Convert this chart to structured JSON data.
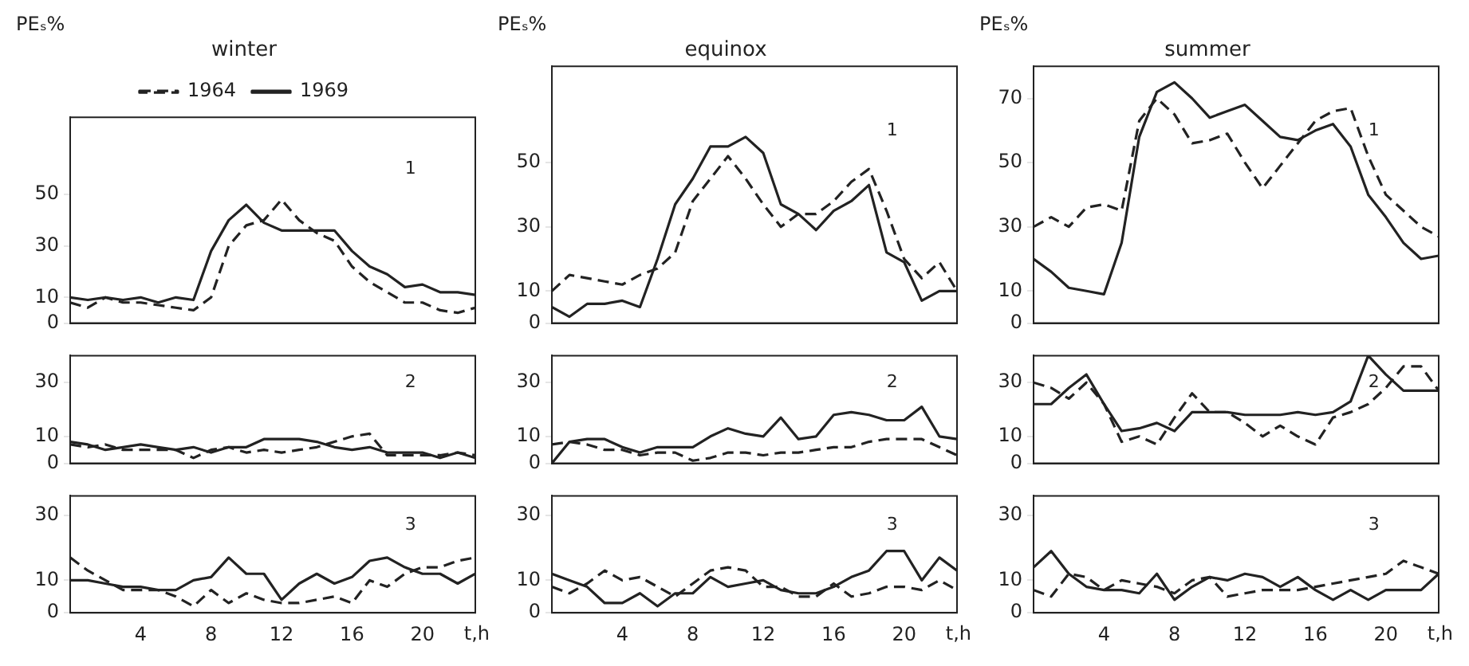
{
  "chart_data": [
    {
      "type": "line",
      "title": "winter",
      "ylabel": "PEₛ%",
      "legend": "top",
      "marker": "none",
      "tick_labels": "y",
      "xlim": [
        0,
        23
      ],
      "xticks": [
        4,
        8,
        12,
        16,
        20
      ],
      "ylim": [
        0,
        80
      ],
      "yticks": [
        0,
        10,
        30,
        50
      ],
      "x": [
        0,
        1,
        2,
        3,
        4,
        5,
        6,
        7,
        8,
        9,
        10,
        11,
        12,
        13,
        14,
        15,
        16,
        17,
        18,
        19,
        20,
        21,
        22,
        23
      ],
      "annotations": [
        "1"
      ],
      "series": [
        {
          "name": "1964",
          "color": "#222222",
          "line_style": "dashed",
          "values": [
            8,
            6,
            10,
            8,
            8,
            7,
            6,
            5,
            10,
            30,
            38,
            40,
            48,
            40,
            35,
            32,
            22,
            16,
            12,
            8,
            8,
            5,
            4,
            6
          ]
        },
        {
          "name": "1969",
          "color": "#222222",
          "line_style": "solid",
          "values": [
            10,
            9,
            10,
            9,
            10,
            8,
            10,
            9,
            28,
            40,
            46,
            39,
            36,
            36,
            36,
            36,
            28,
            22,
            19,
            14,
            15,
            12,
            12,
            11
          ]
        }
      ]
    },
    {
      "type": "line",
      "title": "equinox",
      "ylabel": "PEₛ%",
      "marker": "none",
      "tick_labels": "y",
      "xlim": [
        0,
        23
      ],
      "xticks": [
        4,
        8,
        12,
        16,
        20
      ],
      "ylim": [
        0,
        80
      ],
      "yticks": [
        0,
        10,
        30,
        50
      ],
      "x": [
        0,
        1,
        2,
        3,
        4,
        5,
        6,
        7,
        8,
        9,
        10,
        11,
        12,
        13,
        14,
        15,
        16,
        17,
        18,
        19,
        20,
        21,
        22,
        23
      ],
      "annotations": [
        "1"
      ],
      "series": [
        {
          "color": "#222222",
          "line_style": "dashed",
          "values": [
            10,
            15,
            14,
            13,
            12,
            15,
            17,
            22,
            38,
            45,
            52,
            45,
            37,
            30,
            34,
            34,
            38,
            44,
            48,
            35,
            20,
            14,
            19,
            10
          ]
        },
        {
          "color": "#222222",
          "line_style": "solid",
          "values": [
            5,
            2,
            6,
            6,
            7,
            5,
            20,
            37,
            45,
            55,
            55,
            58,
            53,
            37,
            34,
            29,
            35,
            38,
            43,
            22,
            19,
            7,
            10,
            10
          ]
        }
      ]
    },
    {
      "type": "line",
      "title": "summer",
      "ylabel": "PEₛ%",
      "marker": "none",
      "tick_labels": "y",
      "xlim": [
        0,
        23
      ],
      "xticks": [
        4,
        8,
        12,
        16,
        20
      ],
      "ylim": [
        0,
        80
      ],
      "yticks": [
        0,
        10,
        30,
        50,
        70
      ],
      "x": [
        0,
        1,
        2,
        3,
        4,
        5,
        6,
        7,
        8,
        9,
        10,
        11,
        12,
        13,
        14,
        15,
        16,
        17,
        18,
        19,
        20,
        21,
        22,
        23
      ],
      "annotations": [
        "1"
      ],
      "series": [
        {
          "color": "#222222",
          "line_style": "dashed",
          "values": [
            30,
            33,
            30,
            36,
            37,
            35,
            63,
            70,
            65,
            56,
            57,
            59,
            50,
            42,
            49,
            56,
            63,
            66,
            67,
            52,
            40,
            35,
            30,
            27
          ]
        },
        {
          "color": "#222222",
          "line_style": "solid",
          "values": [
            20,
            16,
            11,
            10,
            9,
            25,
            58,
            72,
            75,
            70,
            64,
            66,
            68,
            63,
            58,
            57,
            60,
            62,
            55,
            40,
            33,
            25,
            20,
            21
          ]
        }
      ]
    },
    {
      "type": "line",
      "marker": "none",
      "tick_labels": "y",
      "xlim": [
        0,
        23
      ],
      "xticks": [
        4,
        8,
        12,
        16,
        20
      ],
      "ylim": [
        0,
        40
      ],
      "yticks": [
        0,
        10,
        30
      ],
      "x": [
        0,
        1,
        2,
        3,
        4,
        5,
        6,
        7,
        8,
        9,
        10,
        11,
        12,
        13,
        14,
        15,
        16,
        17,
        18,
        19,
        20,
        21,
        22,
        23
      ],
      "annotations": [
        "2"
      ],
      "series": [
        {
          "color": "#222222",
          "line_style": "dashed",
          "values": [
            7,
            6,
            7,
            5,
            5,
            5,
            5,
            2,
            5,
            6,
            4,
            5,
            4,
            5,
            6,
            8,
            10,
            11,
            3,
            3,
            3,
            3,
            4,
            3
          ]
        },
        {
          "color": "#222222",
          "line_style": "solid",
          "values": [
            8,
            7,
            5,
            6,
            7,
            6,
            5,
            6,
            4,
            6,
            6,
            9,
            9,
            9,
            8,
            6,
            5,
            6,
            4,
            4,
            4,
            2,
            4,
            2
          ]
        }
      ]
    },
    {
      "type": "line",
      "marker": "none",
      "tick_labels": "y",
      "xlim": [
        0,
        23
      ],
      "xticks": [
        4,
        8,
        12,
        16,
        20
      ],
      "ylim": [
        0,
        40
      ],
      "yticks": [
        0,
        10,
        30
      ],
      "x": [
        0,
        1,
        2,
        3,
        4,
        5,
        6,
        7,
        8,
        9,
        10,
        11,
        12,
        13,
        14,
        15,
        16,
        17,
        18,
        19,
        20,
        21,
        22,
        23
      ],
      "annotations": [
        "2"
      ],
      "series": [
        {
          "color": "#222222",
          "line_style": "dashed",
          "values": [
            7,
            8,
            7,
            5,
            5,
            3,
            4,
            4,
            1,
            2,
            4,
            4,
            3,
            4,
            4,
            5,
            6,
            6,
            8,
            9,
            9,
            9,
            6,
            3
          ]
        },
        {
          "color": "#222222",
          "line_style": "solid",
          "values": [
            0,
            8,
            9,
            9,
            6,
            4,
            6,
            6,
            6,
            10,
            13,
            11,
            10,
            17,
            9,
            10,
            18,
            19,
            18,
            16,
            16,
            21,
            10,
            9
          ]
        }
      ]
    },
    {
      "type": "line",
      "marker": "none",
      "tick_labels": "y",
      "xlim": [
        0,
        23
      ],
      "xticks": [
        4,
        8,
        12,
        16,
        20
      ],
      "ylim": [
        0,
        40
      ],
      "yticks": [
        0,
        10,
        30
      ],
      "x": [
        0,
        1,
        2,
        3,
        4,
        5,
        6,
        7,
        8,
        9,
        10,
        11,
        12,
        13,
        14,
        15,
        16,
        17,
        18,
        19,
        20,
        21,
        22,
        23
      ],
      "annotations": [
        "2"
      ],
      "series": [
        {
          "color": "#222222",
          "line_style": "dashed",
          "values": [
            30,
            28,
            24,
            30,
            22,
            8,
            10,
            7,
            17,
            26,
            19,
            19,
            15,
            10,
            14,
            10,
            7,
            17,
            19,
            22,
            28,
            36,
            36,
            27
          ]
        },
        {
          "color": "#222222",
          "line_style": "solid",
          "values": [
            22,
            22,
            28,
            33,
            22,
            12,
            13,
            15,
            12,
            19,
            19,
            19,
            18,
            18,
            18,
            19,
            18,
            19,
            23,
            40,
            33,
            27,
            27,
            27
          ]
        }
      ]
    },
    {
      "type": "line",
      "xlabel": "t,h",
      "marker": "none",
      "xlim": [
        0,
        23
      ],
      "xticks": [
        4,
        8,
        12,
        16,
        20
      ],
      "ylim": [
        0,
        36
      ],
      "yticks": [
        0,
        10,
        30
      ],
      "x": [
        0,
        1,
        2,
        3,
        4,
        5,
        6,
        7,
        8,
        9,
        10,
        11,
        12,
        13,
        14,
        15,
        16,
        17,
        18,
        19,
        20,
        21,
        22,
        23
      ],
      "annotations": [
        "3"
      ],
      "series": [
        {
          "color": "#222222",
          "line_style": "dashed",
          "values": [
            17,
            13,
            10,
            7,
            7,
            7,
            5,
            2,
            7,
            3,
            6,
            4,
            3,
            3,
            4,
            5,
            3,
            10,
            8,
            12,
            14,
            14,
            16,
            17
          ]
        },
        {
          "color": "#222222",
          "line_style": "solid",
          "values": [
            10,
            10,
            9,
            8,
            8,
            7,
            7,
            10,
            11,
            17,
            12,
            12,
            4,
            9,
            12,
            9,
            11,
            16,
            17,
            14,
            12,
            12,
            9,
            12
          ]
        }
      ]
    },
    {
      "type": "line",
      "xlabel": "t,h",
      "marker": "none",
      "xlim": [
        0,
        23
      ],
      "xticks": [
        4,
        8,
        12,
        16,
        20
      ],
      "ylim": [
        0,
        36
      ],
      "yticks": [
        0,
        10,
        30
      ],
      "x": [
        0,
        1,
        2,
        3,
        4,
        5,
        6,
        7,
        8,
        9,
        10,
        11,
        12,
        13,
        14,
        15,
        16,
        17,
        18,
        19,
        20,
        21,
        22,
        23
      ],
      "annotations": [
        "3"
      ],
      "series": [
        {
          "color": "#222222",
          "line_style": "dashed",
          "values": [
            8,
            6,
            9,
            13,
            10,
            11,
            8,
            5,
            9,
            13,
            14,
            13,
            8,
            8,
            5,
            5,
            9,
            5,
            6,
            8,
            8,
            7,
            10,
            7
          ]
        },
        {
          "color": "#222222",
          "line_style": "solid",
          "values": [
            12,
            10,
            8,
            3,
            3,
            6,
            2,
            6,
            6,
            11,
            8,
            9,
            10,
            7,
            6,
            6,
            8,
            11,
            13,
            19,
            19,
            10,
            17,
            13
          ]
        }
      ]
    },
    {
      "type": "line",
      "xlabel": "t,h",
      "marker": "none",
      "xlim": [
        0,
        23
      ],
      "xticks": [
        4,
        8,
        12,
        16,
        20
      ],
      "ylim": [
        0,
        36
      ],
      "yticks": [
        0,
        10,
        30
      ],
      "x": [
        0,
        1,
        2,
        3,
        4,
        5,
        6,
        7,
        8,
        9,
        10,
        11,
        12,
        13,
        14,
        15,
        16,
        17,
        18,
        19,
        20,
        21,
        22,
        23
      ],
      "annotations": [
        "3"
      ],
      "series": [
        {
          "color": "#222222",
          "line_style": "dashed",
          "values": [
            7,
            5,
            12,
            11,
            7,
            10,
            9,
            8,
            6,
            10,
            11,
            5,
            6,
            7,
            7,
            7,
            8,
            9,
            10,
            11,
            12,
            16,
            14,
            12
          ]
        },
        {
          "color": "#222222",
          "line_style": "solid",
          "values": [
            14,
            19,
            12,
            8,
            7,
            7,
            6,
            12,
            4,
            8,
            11,
            10,
            12,
            11,
            8,
            11,
            7,
            4,
            7,
            4,
            7,
            7,
            7,
            12
          ]
        }
      ]
    }
  ]
}
